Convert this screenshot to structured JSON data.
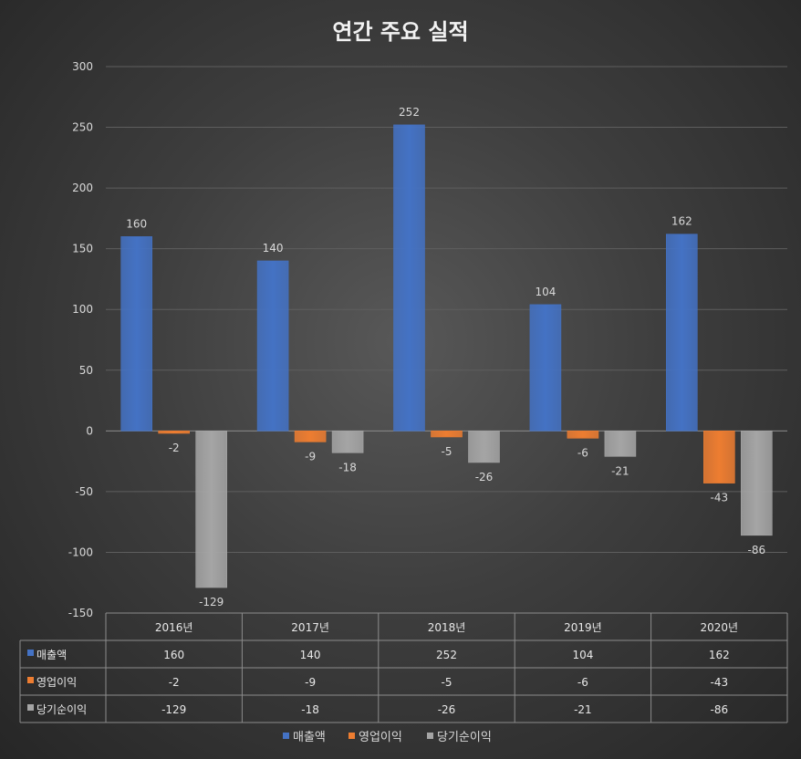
{
  "chart_data": {
    "type": "bar",
    "title": "연간 주요 실적",
    "categories": [
      "2016년",
      "2017년",
      "2018년",
      "2019년",
      "2020년"
    ],
    "series": [
      {
        "name": "매출액",
        "color": "#4472c4",
        "values": [
          160,
          140,
          252,
          104,
          162
        ]
      },
      {
        "name": "영업이익",
        "color": "#ed7d31",
        "values": [
          -2,
          -9,
          -5,
          -6,
          -43
        ]
      },
      {
        "name": "당기순이익",
        "color": "#a5a5a5",
        "values": [
          -129,
          -18,
          -26,
          -21,
          -86
        ]
      }
    ],
    "ylim": [
      -150,
      300
    ],
    "yticks": [
      300,
      250,
      200,
      150,
      100,
      50,
      0,
      -50,
      -100,
      -150
    ],
    "grid": true,
    "data_table": true,
    "legend_position": "bottom"
  }
}
